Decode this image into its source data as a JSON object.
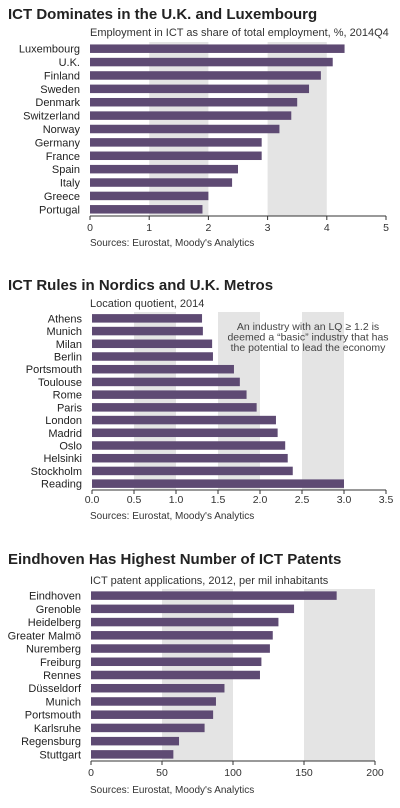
{
  "chart_data": [
    {
      "type": "bar",
      "orientation": "horizontal",
      "title": "ICT Dominates in the U.K. and Luxembourg",
      "subtitle": "Employment in ICT as share of total employment, %, 2014Q4",
      "source": "Sources: Eurostat, Moody's Analytics",
      "categories": [
        "Luxembourg",
        "U.K.",
        "Finland",
        "Sweden",
        "Denmark",
        "Switzerland",
        "Norway",
        "Germany",
        "France",
        "Spain",
        "Italy",
        "Greece",
        "Portugal"
      ],
      "values": [
        4.3,
        4.1,
        3.9,
        3.7,
        3.5,
        3.4,
        3.2,
        2.9,
        2.9,
        2.5,
        2.4,
        2.0,
        1.9
      ],
      "xlim": [
        0,
        5
      ],
      "ticks": [
        "0",
        "1",
        "2",
        "3",
        "4",
        "5"
      ],
      "tick_values": [
        0,
        1,
        2,
        3,
        4,
        5
      ],
      "bar_color": "#5e4a73",
      "band_color": "#e4e4e4"
    },
    {
      "type": "bar",
      "orientation": "horizontal",
      "title": "ICT Rules in Nordics and U.K. Metros",
      "subtitle": "Location quotient, 2014",
      "source": "Sources: Eurostat, Moody's Analytics",
      "annotation": [
        "An industry with an LQ ≥ 1.2 is",
        "deemed a “basic” industry that has",
        "the potential to lead the economy"
      ],
      "categories": [
        "Athens",
        "Munich",
        "Milan",
        "Berlin",
        "Portsmouth",
        "Toulouse",
        "Rome",
        "Paris",
        "London",
        "Madrid",
        "Oslo",
        "Helsinki",
        "Stockholm",
        "Reading"
      ],
      "values": [
        1.31,
        1.32,
        1.43,
        1.44,
        1.69,
        1.76,
        1.84,
        1.96,
        2.19,
        2.21,
        2.3,
        2.33,
        2.39,
        3.0
      ],
      "xlim": [
        0,
        3.5
      ],
      "ticks": [
        "0.0",
        "0.5",
        "1.0",
        "1.5",
        "2.0",
        "2.5",
        "3.0",
        "3.5"
      ],
      "tick_values": [
        0,
        0.5,
        1.0,
        1.5,
        2.0,
        2.5,
        3.0,
        3.5
      ],
      "bar_color": "#5e4a73",
      "band_color": "#e4e4e4"
    },
    {
      "type": "bar",
      "orientation": "horizontal",
      "title": "Eindhoven Has Highest Number of ICT Patents",
      "subtitle": "ICT patent applications, 2012, per mil inhabitants",
      "source": "Sources: Eurostat, Moody's Analytics",
      "categories": [
        "Eindhoven",
        "Grenoble",
        "Heidelberg",
        "Greater Malmö",
        "Nuremberg",
        "Freiburg",
        "Rennes",
        "Düsseldorf",
        "Munich",
        "Portsmouth",
        "Karlsruhe",
        "Regensburg",
        "Stuttgart"
      ],
      "values": [
        173,
        143,
        132,
        128,
        126,
        120,
        119,
        94,
        88,
        86,
        80,
        62,
        58
      ],
      "xlim": [
        0,
        200
      ],
      "ticks": [
        "0",
        "50",
        "100",
        "150",
        "200"
      ],
      "tick_values": [
        0,
        50,
        100,
        150,
        200
      ],
      "bar_color": "#5e4a73",
      "band_color": "#e4e4e4"
    }
  ]
}
